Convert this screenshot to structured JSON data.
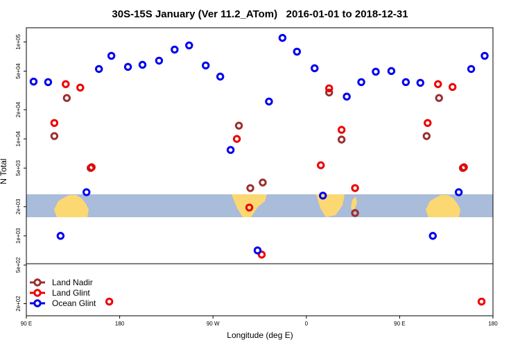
{
  "chart_data": {
    "type": "scatter",
    "title": "30S-15S January (Ver 11.2_ATom)   2016-01-01 to 2018-12-31",
    "x_label": "Longitude (deg E)",
    "y_label": "N Total",
    "log_scale": "y",
    "legend_position": "lower left",
    "xlim": [
      90,
      540
    ],
    "ylim": [
      150,
      140000
    ],
    "xticks": [
      {
        "value": 90,
        "label": "90 E"
      },
      {
        "value": 180,
        "label": "180"
      },
      {
        "value": 270,
        "label": "90 W"
      },
      {
        "value": 360,
        "label": "0"
      },
      {
        "value": 450,
        "label": "90 E"
      },
      {
        "value": 540,
        "label": "180"
      }
    ],
    "yticks": [
      {
        "value": 200,
        "label": "2e+02"
      },
      {
        "value": 500,
        "label": "5e+02"
      },
      {
        "value": 1000,
        "label": "1e+03"
      },
      {
        "value": 2000,
        "label": "2e+03"
      },
      {
        "value": 5000,
        "label": "5e+03"
      },
      {
        "value": 10000,
        "label": "1e+04"
      },
      {
        "value": 20000,
        "label": "2e+04"
      },
      {
        "value": 50000,
        "label": "5e+04"
      },
      {
        "value": 100000,
        "label": "1e+05"
      }
    ],
    "series": [
      {
        "name": "Land Nadir",
        "color": "#9b2f2f",
        "x": [
          117,
          129,
          152,
          295,
          306,
          318,
          382,
          394,
          407,
          476,
          488,
          511
        ],
        "values": [
          10700,
          26400,
          5010,
          13700,
          3110,
          3550,
          30100,
          9840,
          1720,
          10700,
          26400,
          5010
        ]
      },
      {
        "name": "Land Glint",
        "color": "#ee0000",
        "x": [
          117,
          128,
          142,
          153,
          170,
          293,
          305,
          317,
          374,
          382,
          394,
          407,
          477,
          487,
          501,
          512,
          529
        ],
        "values": [
          14600,
          36700,
          33800,
          5100,
          210,
          10000,
          1960,
          641,
          5350,
          33200,
          12400,
          3110,
          14600,
          36700,
          34300,
          5100,
          210
        ]
      },
      {
        "name": "Ocean Glint",
        "color": "#0000ee",
        "x": [
          97,
          111,
          123,
          148,
          160,
          172,
          188,
          202,
          218,
          233,
          247,
          263,
          277,
          287,
          313,
          324,
          337,
          351,
          368,
          376,
          399,
          413,
          427,
          442,
          456,
          470,
          482,
          507,
          519,
          532
        ],
        "values": [
          39000,
          38500,
          1000,
          2820,
          52600,
          71900,
          55300,
          58100,
          64100,
          83400,
          92100,
          57200,
          43900,
          7690,
          708,
          24300,
          110000,
          79400,
          53500,
          2600,
          27300,
          38500,
          49300,
          50100,
          38500,
          37900,
          1000,
          2820,
          52600,
          71900
        ]
      }
    ]
  }
}
